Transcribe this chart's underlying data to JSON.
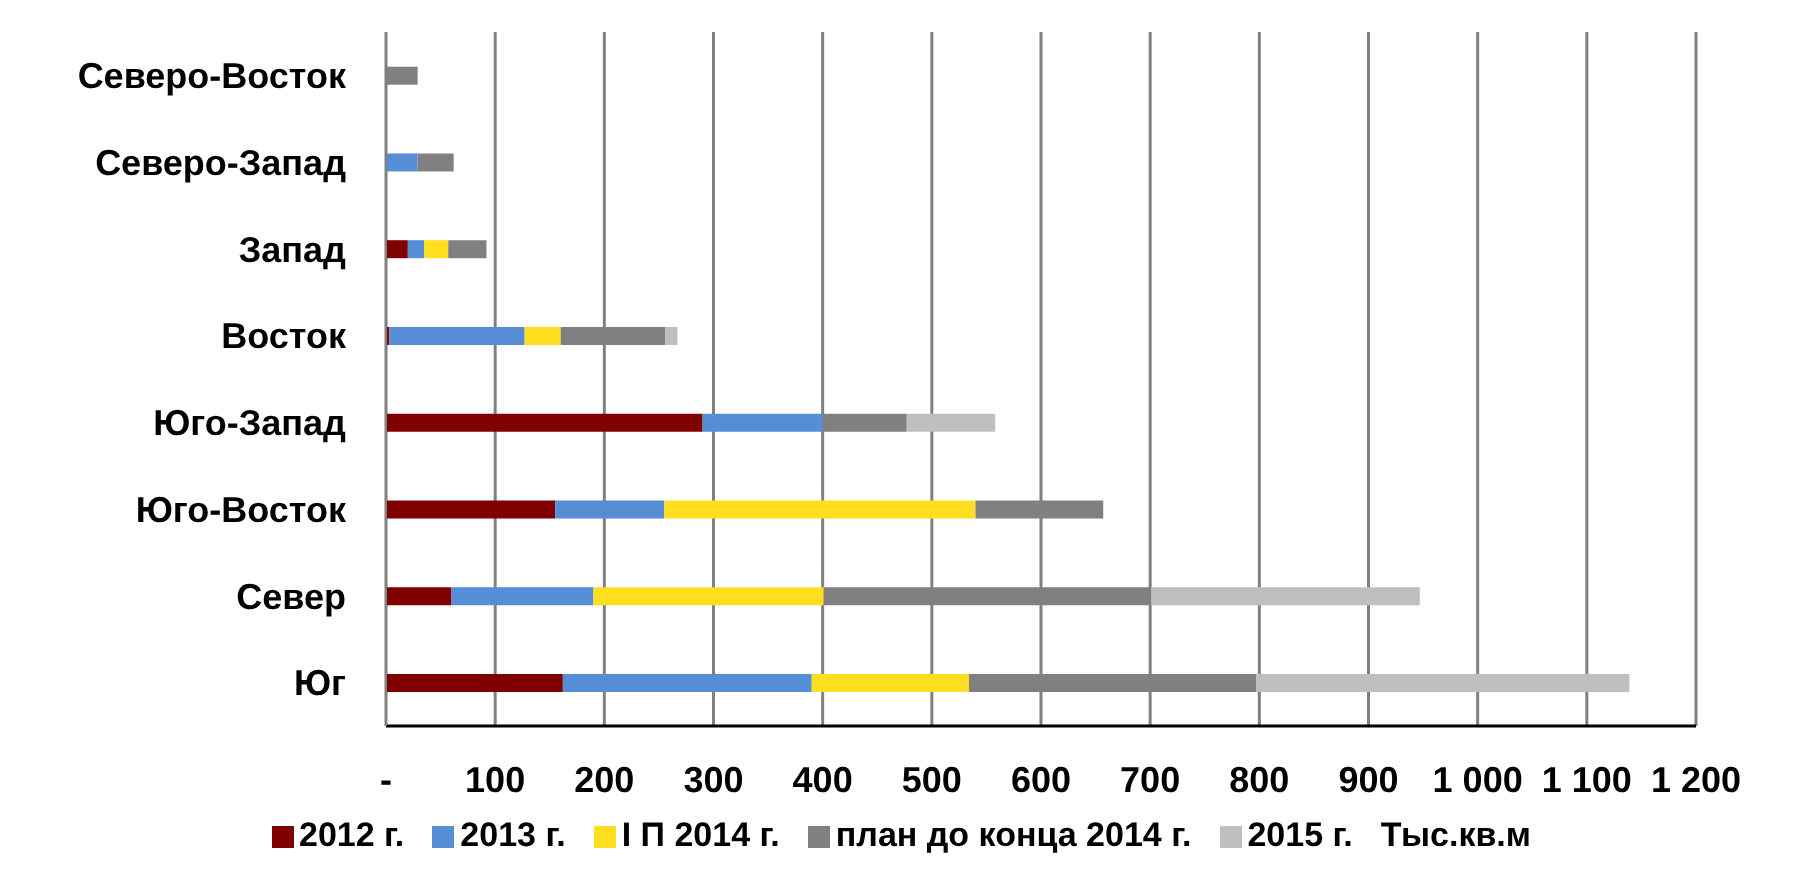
{
  "chart_data": {
    "type": "bar",
    "orientation": "horizontal",
    "stacked": true,
    "categories": [
      "Северо-Восток",
      "Северо-Запад",
      "Запад",
      "Восток",
      "Юго-Запад",
      "Юго-Восток",
      "Север",
      "Юг"
    ],
    "series": [
      {
        "name": "2012 г.",
        "color": "#800000",
        "values": [
          null,
          null,
          20,
          3,
          290,
          155,
          60,
          162
        ]
      },
      {
        "name": "2013 г.",
        "color": "#558ed5",
        "values": [
          null,
          29,
          15,
          124,
          110,
          100,
          130,
          228
        ]
      },
      {
        "name": "I П 2014 г.",
        "color": "#ffdf1f",
        "values": [
          null,
          null,
          22,
          33,
          null,
          285,
          211,
          144
        ]
      },
      {
        "name": "план до конца 2014 г.",
        "color": "#808080",
        "values": [
          29,
          33,
          35,
          96,
          77,
          117,
          300,
          263
        ]
      },
      {
        "name": "2015 г.",
        "color": "#bfbfbf",
        "values": [
          null,
          null,
          null,
          11,
          81,
          null,
          246,
          342
        ]
      }
    ],
    "xlim": [
      0,
      1200
    ],
    "xticks": [
      {
        "value": 0,
        "label": "-"
      },
      100,
      200,
      300,
      400,
      500,
      600,
      700,
      800,
      900,
      {
        "value": 1000,
        "label": "1 000"
      },
      {
        "value": 1100,
        "label": "1 100"
      },
      {
        "value": 1200,
        "label": "1 200"
      }
    ],
    "grid": "x",
    "legend": "bottom",
    "annotations": [
      "Тыс.кв.м"
    ]
  }
}
